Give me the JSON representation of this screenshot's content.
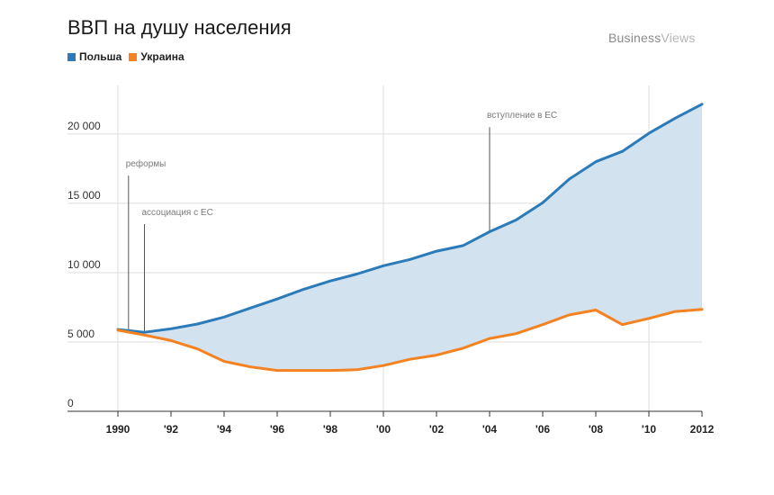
{
  "title": "ВВП на душу населения",
  "brand": {
    "part1": "Business",
    "part2": "Views"
  },
  "chart_data": {
    "type": "area",
    "title": "ВВП на душу населения",
    "x": [
      1990,
      1991,
      1992,
      1993,
      1994,
      1995,
      1996,
      1997,
      1998,
      1999,
      2000,
      2001,
      2002,
      2003,
      2004,
      2005,
      2006,
      2007,
      2008,
      2009,
      2010,
      2011,
      2012
    ],
    "series": [
      {
        "name": "Польша",
        "color": "#2b7bb9",
        "values": [
          5900,
          5700,
          5950,
          6300,
          6800,
          7450,
          8100,
          8800,
          9400,
          9900,
          10500,
          10950,
          11550,
          11950,
          12950,
          13800,
          15050,
          16750,
          18000,
          18750,
          20050,
          21150,
          22150
        ]
      },
      {
        "name": "Украина",
        "color": "#f58220",
        "values": [
          5850,
          5500,
          5100,
          4500,
          3600,
          3200,
          2950,
          2950,
          2950,
          3000,
          3300,
          3750,
          4050,
          4550,
          5250,
          5600,
          6250,
          6950,
          7300,
          6250,
          6700,
          7200,
          7350
        ]
      }
    ],
    "fill_between": {
      "color": "#d3e2ef"
    },
    "ylim": [
      0,
      23500
    ],
    "xlim": [
      1990,
      2012
    ],
    "yticks": [
      {
        "value": 0,
        "label": "0"
      },
      {
        "value": 5000,
        "label": "5 000"
      },
      {
        "value": 10000,
        "label": "10 000"
      },
      {
        "value": 15000,
        "label": "15 000"
      },
      {
        "value": 20000,
        "label": "20 000"
      }
    ],
    "xticks": [
      {
        "value": 1990,
        "label": "1990"
      },
      {
        "value": 1992,
        "label": "'92"
      },
      {
        "value": 1994,
        "label": "'94"
      },
      {
        "value": 1996,
        "label": "'96"
      },
      {
        "value": 1998,
        "label": "'98"
      },
      {
        "value": 2000,
        "label": "'00"
      },
      {
        "value": 2002,
        "label": "'02"
      },
      {
        "value": 2004,
        "label": "'04"
      },
      {
        "value": 2006,
        "label": "'06"
      },
      {
        "value": 2008,
        "label": "'08"
      },
      {
        "value": 2010,
        "label": "'10"
      },
      {
        "value": 2012,
        "label": "2012"
      }
    ],
    "vertical_gridlines": [
      1990,
      2000,
      2010
    ],
    "annotations": [
      {
        "x": 1990.4,
        "top_value": 17000,
        "label": "реформы"
      },
      {
        "x": 1991.0,
        "top_value": 13500,
        "label": "ассоциация с ЕС"
      },
      {
        "x": 2004.0,
        "top_value": 20500,
        "label": "вступление в ЕС"
      }
    ],
    "legend_position": "top-left",
    "grid": true
  }
}
